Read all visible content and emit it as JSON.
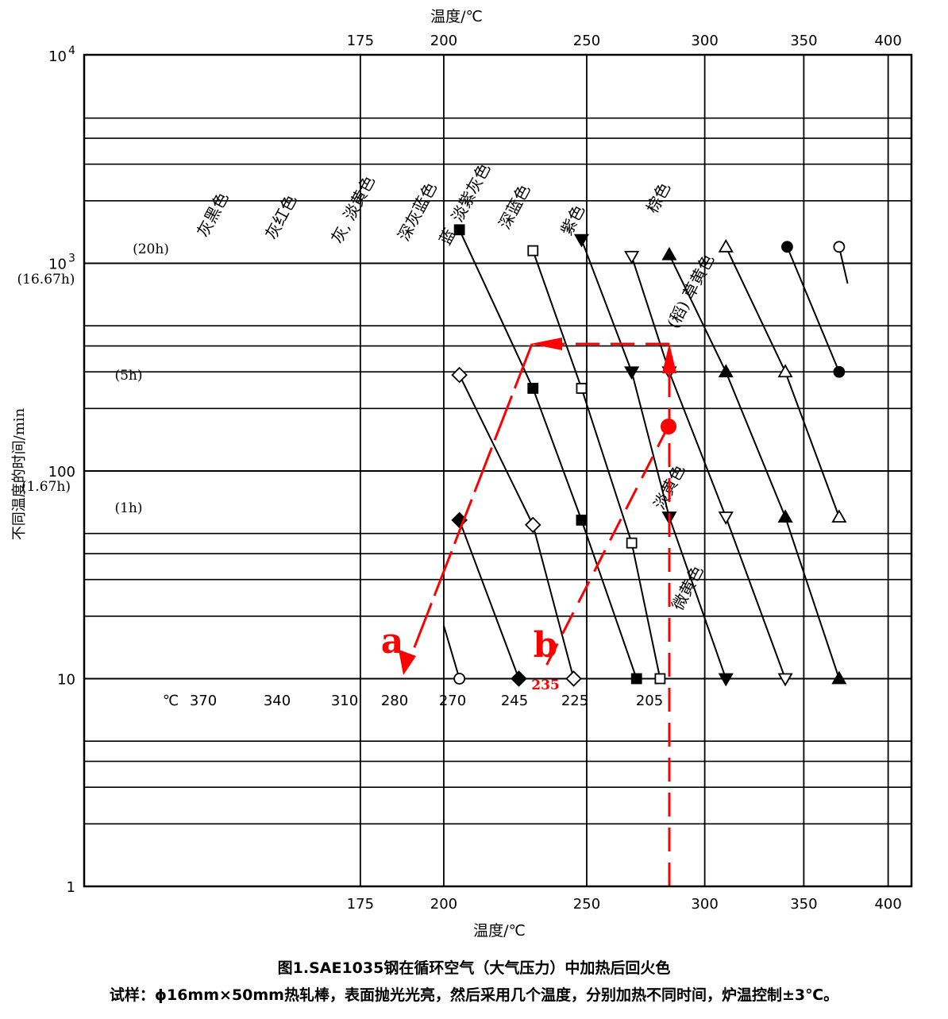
{
  "chart_data": {
    "type": "scatter",
    "x_scale": "reciprocal",
    "y_scale": "log",
    "xlabel_top": "温度/℃",
    "xlabel_bottom": "温度/℃",
    "ylabel": "不同温度的时间/min",
    "x_ticks": [
      "400",
      "350",
      "300",
      "250",
      "200",
      "175"
    ],
    "y_ticks": [
      {
        "value": 10000,
        "label": "10",
        "exp": "4"
      },
      {
        "value": 1000,
        "label": "10",
        "exp": "3"
      },
      {
        "value": 100,
        "label": "100",
        "exp": ""
      },
      {
        "value": 10,
        "label": "10",
        "exp": ""
      },
      {
        "value": 1,
        "label": "1",
        "exp": ""
      }
    ],
    "ylim": [
      1,
      10000
    ],
    "grid": true,
    "time_labels": [
      {
        "label": "(20h)",
        "minutes": 1200
      },
      {
        "label": "(16.67h)",
        "minutes": 1000
      },
      {
        "label": "(5h)",
        "minutes": 300
      },
      {
        "label": "(1.67h)",
        "minutes": 100
      },
      {
        "label": "(1h)",
        "minutes": 60
      }
    ],
    "unit_label": "℃",
    "series": [
      {
        "start_label": "370",
        "color_name": "灰黑色",
        "marker": "circle-open",
        "points": [
          {
            "temp": 370,
            "min": 1200
          },
          {
            "temp": 375,
            "min": 800
          }
        ]
      },
      {
        "start_label": "370",
        "color_name": "灰红色",
        "marker": "circle-filled",
        "points": [
          {
            "temp": 370,
            "min": 300
          },
          {
            "temp": 341,
            "min": 1200
          }
        ]
      },
      {
        "start_label": "370",
        "color_name": "灰, 淡黄色",
        "marker": "triangle-up-open",
        "points": [
          {
            "temp": 370,
            "min": 60
          },
          {
            "temp": 340,
            "min": 300
          },
          {
            "temp": 310,
            "min": 1200
          }
        ]
      },
      {
        "start_label": "370",
        "color_name": "深灰蓝色",
        "marker": "triangle-up-filled",
        "points": [
          {
            "temp": 370,
            "min": 10
          },
          {
            "temp": 340,
            "min": 60
          },
          {
            "temp": 310,
            "min": 300
          },
          {
            "temp": 284,
            "min": 1100
          }
        ]
      },
      {
        "start_label": "340",
        "color_name": "蓝, 淡紫灰色",
        "marker": "triangle-down-open",
        "points": [
          {
            "temp": 340,
            "min": 10
          },
          {
            "temp": 310,
            "min": 60
          },
          {
            "temp": 284,
            "min": 300
          },
          {
            "temp": 268,
            "min": 1080
          }
        ]
      },
      {
        "start_label": "310",
        "color_name": "深蓝色",
        "marker": "triangle-down-filled",
        "points": [
          {
            "temp": 310,
            "min": 10
          },
          {
            "temp": 284,
            "min": 60
          },
          {
            "temp": 268,
            "min": 300
          },
          {
            "temp": 248,
            "min": 1300
          }
        ]
      },
      {
        "start_label": "280",
        "color_name": "紫色",
        "marker": "square-open",
        "points": [
          {
            "temp": 280,
            "min": 10
          },
          {
            "temp": 268,
            "min": 45
          },
          {
            "temp": 248,
            "min": 250
          },
          {
            "temp": 230,
            "min": 1150
          }
        ]
      },
      {
        "start_label": "270",
        "color_name": "棕色",
        "marker": "square-filled",
        "points": [
          {
            "temp": 270,
            "min": 10
          },
          {
            "temp": 248,
            "min": 58
          },
          {
            "temp": 230,
            "min": 250
          },
          {
            "temp": 205,
            "min": 1450
          }
        ]
      },
      {
        "start_label": "245",
        "color_name": "(稻) 草黄色",
        "marker": "diamond-open",
        "points": [
          {
            "temp": 245,
            "min": 10
          },
          {
            "temp": 230,
            "min": 55
          },
          {
            "temp": 205,
            "min": 290
          }
        ]
      },
      {
        "start_label": "225",
        "color_name": "淡黄色",
        "marker": "diamond-filled",
        "points": [
          {
            "temp": 225,
            "min": 10
          },
          {
            "temp": 205,
            "min": 58
          }
        ]
      },
      {
        "start_label": "205",
        "color_name": "微黄色",
        "marker": "circle-open",
        "points": [
          {
            "temp": 205,
            "min": 10
          },
          {
            "temp": 200,
            "min": 18
          }
        ]
      }
    ],
    "annotations": [
      {
        "text": "a",
        "color": "#ff0000"
      },
      {
        "text": "b",
        "color": "#ff0000"
      },
      {
        "text": "235",
        "color": "#ff0000"
      }
    ],
    "accent_color": "#ff0000",
    "title": "图1.SAE1035钢在循环空气（大气压力）中加热后回火色",
    "subtitle": "试样：ϕ16mm×50mm热轧棒，表面抛光光亮，然后采用几个温度，分别加热不同时间，炉温控制±3℃。"
  }
}
